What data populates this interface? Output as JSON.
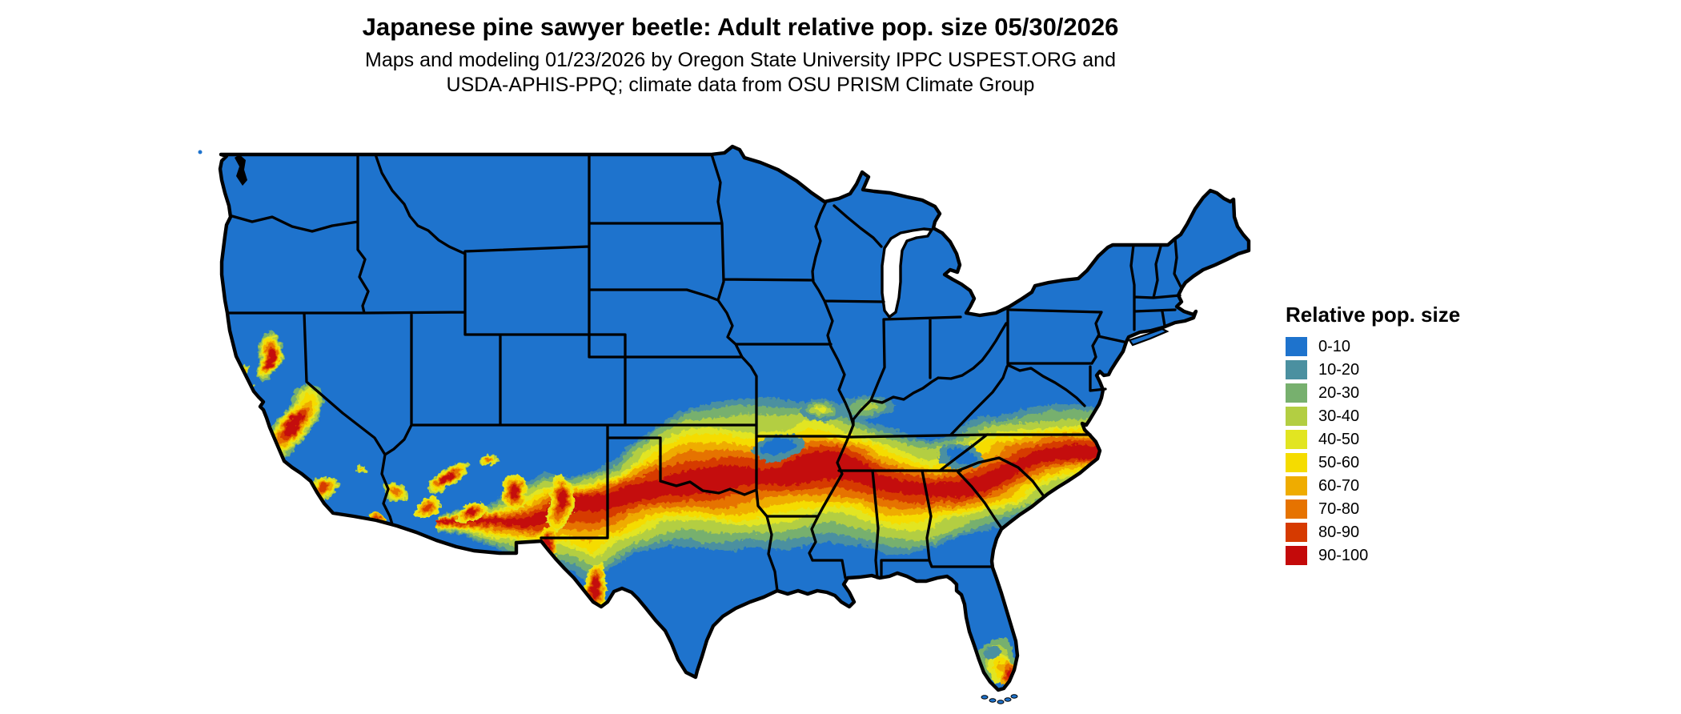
{
  "title": "Japanese pine sawyer beetle: Adult relative pop. size 05/30/2026",
  "subtitle_line1": "Maps and modeling 01/23/2026 by Oregon State University IPPC USPEST.ORG and",
  "subtitle_line2": "USDA-APHIS-PPQ; climate data from OSU PRISM Climate Group",
  "legend": {
    "title": "Relative pop. size",
    "items": [
      {
        "label": "0-10",
        "color": "#1E73CD"
      },
      {
        "label": "10-20",
        "color": "#4B90A0"
      },
      {
        "label": "20-30",
        "color": "#77B06E"
      },
      {
        "label": "30-40",
        "color": "#B3CE42"
      },
      {
        "label": "40-50",
        "color": "#E2E521"
      },
      {
        "label": "50-60",
        "color": "#F5DC00"
      },
      {
        "label": "60-70",
        "color": "#EFAC00"
      },
      {
        "label": "70-80",
        "color": "#E67300"
      },
      {
        "label": "80-90",
        "color": "#D63A00"
      },
      {
        "label": "90-100",
        "color": "#C40A0A"
      }
    ]
  },
  "map": {
    "region": "Contiguous United States",
    "kind": "raster population-size map",
    "base_color": "#1E73CD",
    "border_color": "#000000",
    "background_color": "#FFFFFF"
  }
}
